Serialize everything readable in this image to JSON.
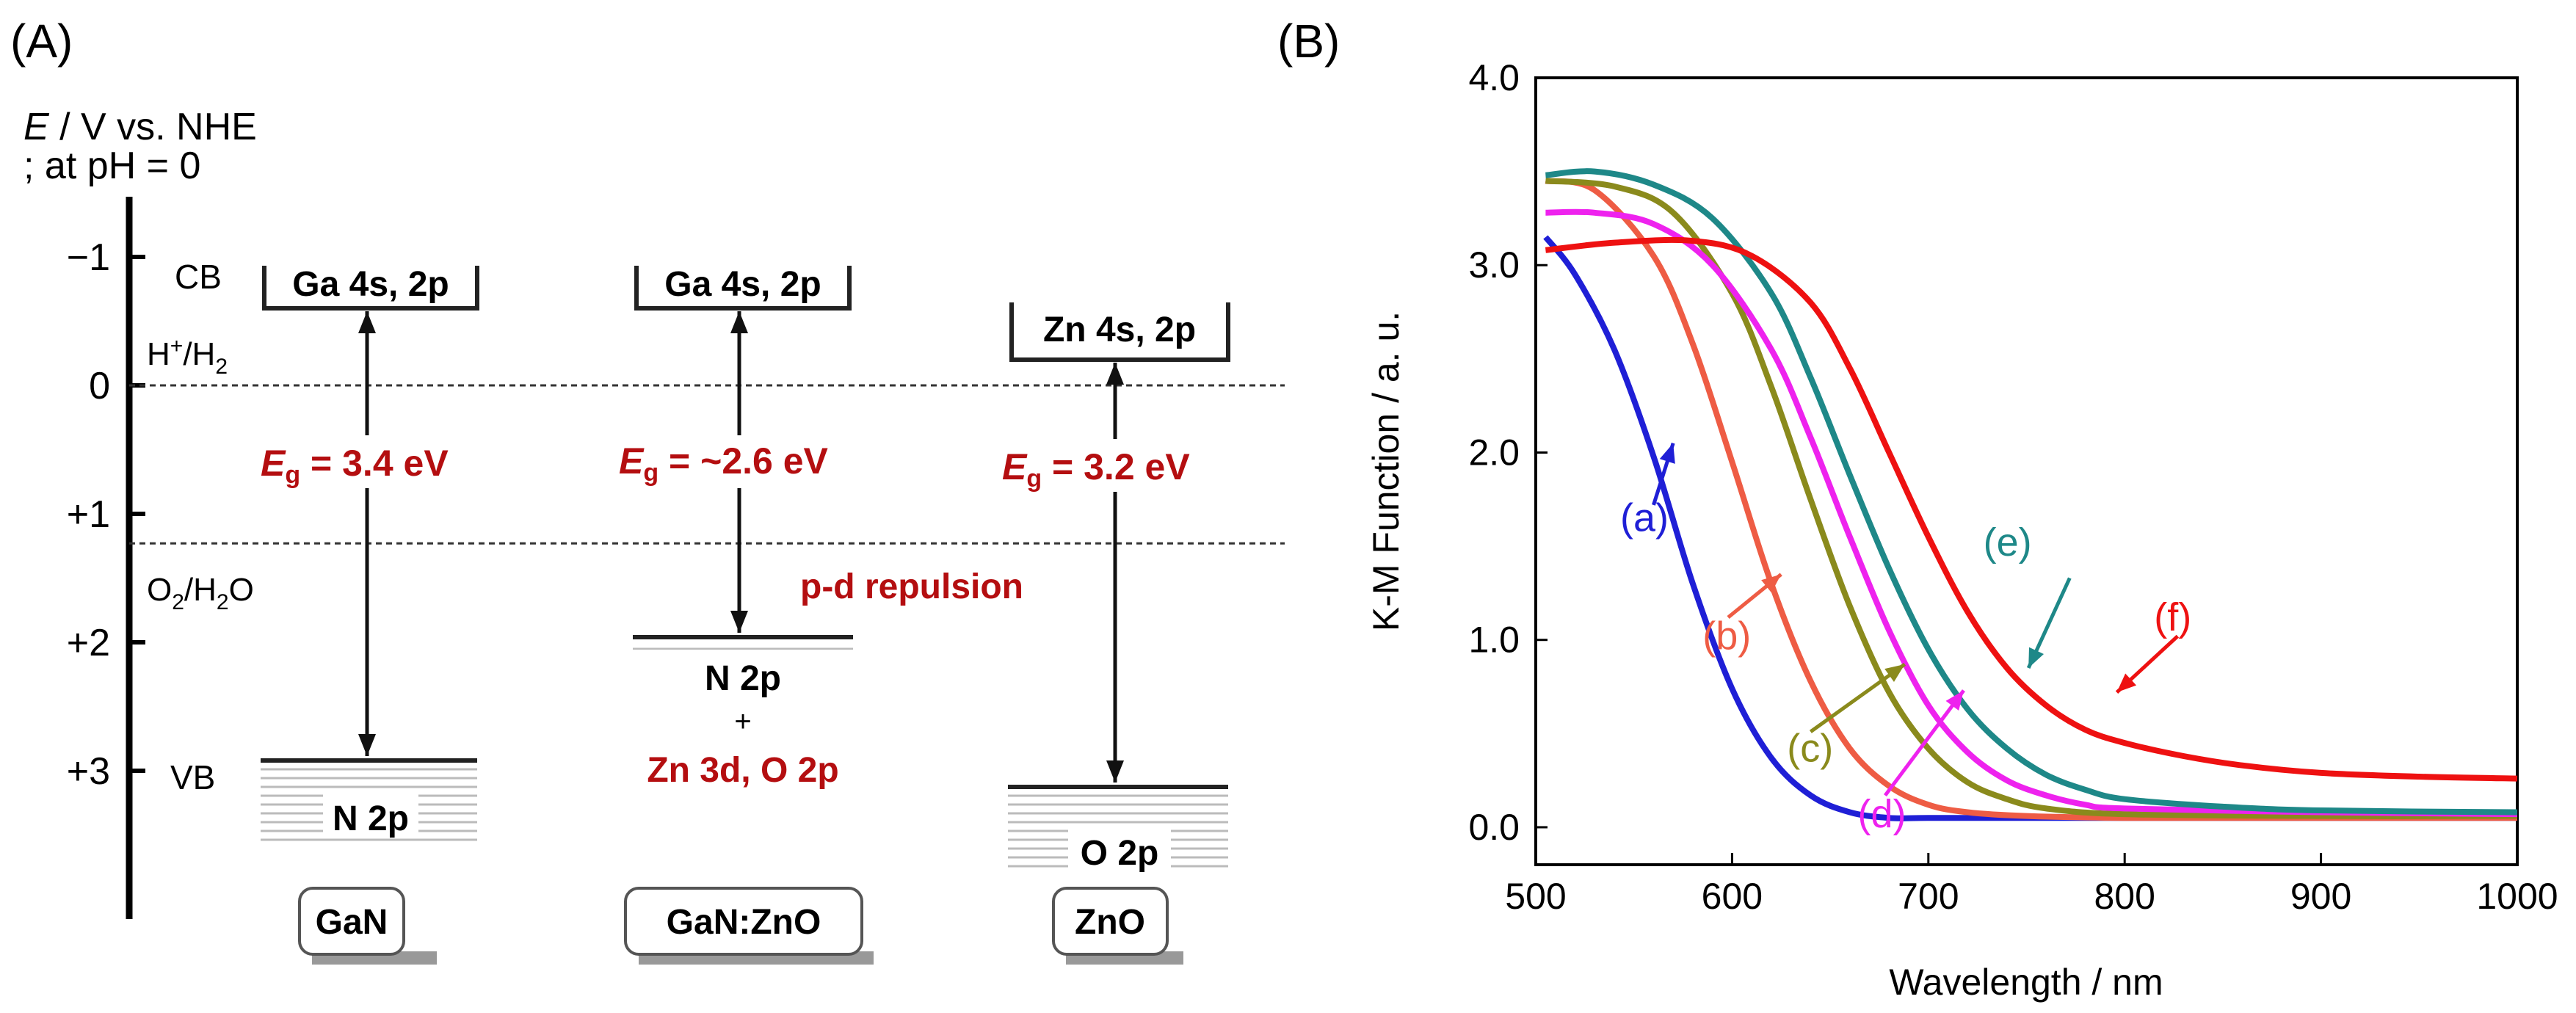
{
  "panelA": {
    "label": "(A)",
    "axis_title_e": "E",
    "axis_title_rest": " / V vs. NHE",
    "axis_subtitle": "; at pH = 0",
    "ticks": [
      "−1",
      "0",
      "+1",
      "+2",
      "+3"
    ],
    "tick_values": [
      -1,
      0,
      1,
      2,
      3
    ],
    "cb_label": "CB",
    "vb_label": "VB",
    "h_label_main": "H",
    "h_label_sup": "+",
    "h_label_mid": "/H",
    "h_label_sub": "2",
    "o_label_main": "O",
    "o_label_sub": "2",
    "o_label_rest": "/H",
    "o_label_sub2": "2",
    "o_label_end": "O",
    "h_potential": 0,
    "o_potential": 1.23,
    "repulsion": "p-d repulsion",
    "materials": [
      {
        "name": "GaN",
        "cb": "Ga 4s, 2p",
        "vb": "N 2p",
        "eg_val": " = 3.4 eV",
        "cb_pos": -0.6,
        "vb_pos": 2.9
      },
      {
        "name": "GaN:ZnO",
        "cb": "Ga 4s, 2p",
        "vb": "N 2p",
        "vb_plus": "+",
        "vb_extra": "Zn 3d, O 2p",
        "eg_val": " = ~2.6 eV",
        "cb_pos": -0.6,
        "vb_pos": 1.95
      },
      {
        "name": "ZnO",
        "cb": "Zn 4s, 2p",
        "vb": "O 2p",
        "eg_val": " = 3.2 eV",
        "cb_pos": -0.2,
        "vb_pos": 3.1
      }
    ],
    "eg_e": "E",
    "eg_g": "g"
  },
  "chart_data": {
    "type": "line",
    "label": "(B)",
    "xlabel": "Wavelength / nm",
    "ylabel": "K-M Function / a. u.",
    "xlim": [
      500,
      1000
    ],
    "ylim": [
      -0.2,
      4.0
    ],
    "xticks": [
      500,
      600,
      700,
      800,
      900,
      1000
    ],
    "yticks": [
      0.0,
      1.0,
      2.0,
      3.0,
      4.0
    ],
    "ytick_labels": [
      "0.0",
      "1.0",
      "2.0",
      "3.0",
      "4.0"
    ],
    "series": [
      {
        "name": "(a)",
        "color": "#1f1fd6",
        "x": [
          505,
          520,
          540,
          560,
          580,
          600,
          620,
          640,
          660,
          680,
          700,
          750,
          800,
          900,
          1000
        ],
        "y": [
          3.15,
          2.95,
          2.55,
          1.98,
          1.3,
          0.74,
          0.37,
          0.17,
          0.08,
          0.05,
          0.05,
          0.05,
          0.05,
          0.05,
          0.05
        ]
      },
      {
        "name": "(b)",
        "color": "#ee5c44",
        "x": [
          505,
          530,
          560,
          580,
          600,
          620,
          640,
          660,
          680,
          700,
          720,
          750,
          800,
          900,
          1000
        ],
        "y": [
          3.45,
          3.4,
          3.05,
          2.58,
          1.95,
          1.3,
          0.78,
          0.42,
          0.22,
          0.12,
          0.08,
          0.06,
          0.05,
          0.05,
          0.05
        ]
      },
      {
        "name": "(c)",
        "color": "#8a8a1c",
        "x": [
          505,
          540,
          570,
          600,
          620,
          640,
          660,
          680,
          700,
          720,
          740,
          760,
          800,
          900,
          1000
        ],
        "y": [
          3.45,
          3.42,
          3.28,
          2.85,
          2.35,
          1.75,
          1.18,
          0.72,
          0.42,
          0.24,
          0.15,
          0.1,
          0.07,
          0.06,
          0.06
        ]
      },
      {
        "name": "(d)",
        "color": "#ee22ee",
        "x": [
          505,
          530,
          560,
          590,
          620,
          640,
          660,
          680,
          700,
          720,
          740,
          760,
          780,
          800,
          900,
          1000
        ],
        "y": [
          3.28,
          3.28,
          3.22,
          3.0,
          2.55,
          2.08,
          1.55,
          1.05,
          0.65,
          0.4,
          0.25,
          0.17,
          0.12,
          0.1,
          0.08,
          0.07
        ]
      },
      {
        "name": "(e)",
        "color": "#1e8888",
        "x": [
          505,
          530,
          560,
          590,
          620,
          640,
          660,
          680,
          700,
          720,
          740,
          760,
          780,
          800,
          850,
          900,
          1000
        ],
        "y": [
          3.48,
          3.5,
          3.43,
          3.25,
          2.85,
          2.4,
          1.88,
          1.38,
          0.95,
          0.63,
          0.42,
          0.28,
          0.2,
          0.15,
          0.11,
          0.09,
          0.08
        ]
      },
      {
        "name": "(f)",
        "color": "#ee1111",
        "x": [
          505,
          540,
          580,
          610,
          640,
          660,
          680,
          700,
          720,
          740,
          760,
          780,
          800,
          830,
          860,
          900,
          950,
          1000
        ],
        "y": [
          3.08,
          3.12,
          3.13,
          3.05,
          2.8,
          2.45,
          2.0,
          1.55,
          1.15,
          0.85,
          0.65,
          0.52,
          0.45,
          0.38,
          0.33,
          0.29,
          0.27,
          0.26
        ]
      }
    ],
    "annotations": [
      {
        "text": "(a)",
        "color": "#1f1fd6",
        "tx": 543,
        "ty": 1.58,
        "ax1": 560,
        "ay1": 1.72,
        "ax2": 570,
        "ay2": 2.05
      },
      {
        "text": "(b)",
        "color": "#ee5c44",
        "tx": 585,
        "ty": 0.95,
        "ax1": 598,
        "ay1": 1.12,
        "ax2": 625,
        "ay2": 1.35
      },
      {
        "text": "(c)",
        "color": "#8a8a1c",
        "tx": 628,
        "ty": 0.35,
        "ax1": 640,
        "ay1": 0.51,
        "ax2": 688,
        "ay2": 0.87
      },
      {
        "text": "(d)",
        "color": "#ee22ee",
        "tx": 664,
        "ty": 0.0,
        "ax1": 678,
        "ay1": 0.17,
        "ax2": 718,
        "ay2": 0.73
      },
      {
        "text": "(e)",
        "color": "#1e8888",
        "tx": 728,
        "ty": 1.45,
        "ax1": 772,
        "ay1": 1.33,
        "ax2": 751,
        "ay2": 0.85
      },
      {
        "text": "(f)",
        "color": "#ee1111",
        "tx": 815,
        "ty": 1.05,
        "ax1": 827,
        "ay1": 1.02,
        "ax2": 796,
        "ay2": 0.72
      }
    ]
  }
}
